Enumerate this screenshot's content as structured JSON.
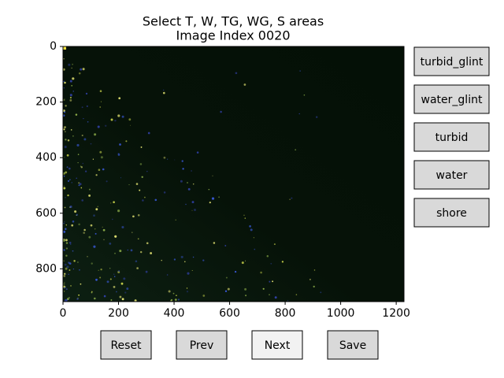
{
  "header": {
    "title": [
      "Select T, W, TG, WG, S areas",
      "Image Index 0020"
    ]
  },
  "image_axes": {
    "xlim": [
      0,
      1228
    ],
    "ylim": [
      0,
      918
    ],
    "xticks": [
      0,
      200,
      400,
      600,
      800,
      1000,
      1200
    ],
    "yticks": [
      0,
      200,
      400,
      600,
      800
    ]
  },
  "side_buttons": [
    "turbid_glint",
    "water_glint",
    "turbid",
    "water",
    "shore"
  ],
  "bottom_buttons": [
    "Reset",
    "Prev",
    "Next",
    "Save"
  ]
}
